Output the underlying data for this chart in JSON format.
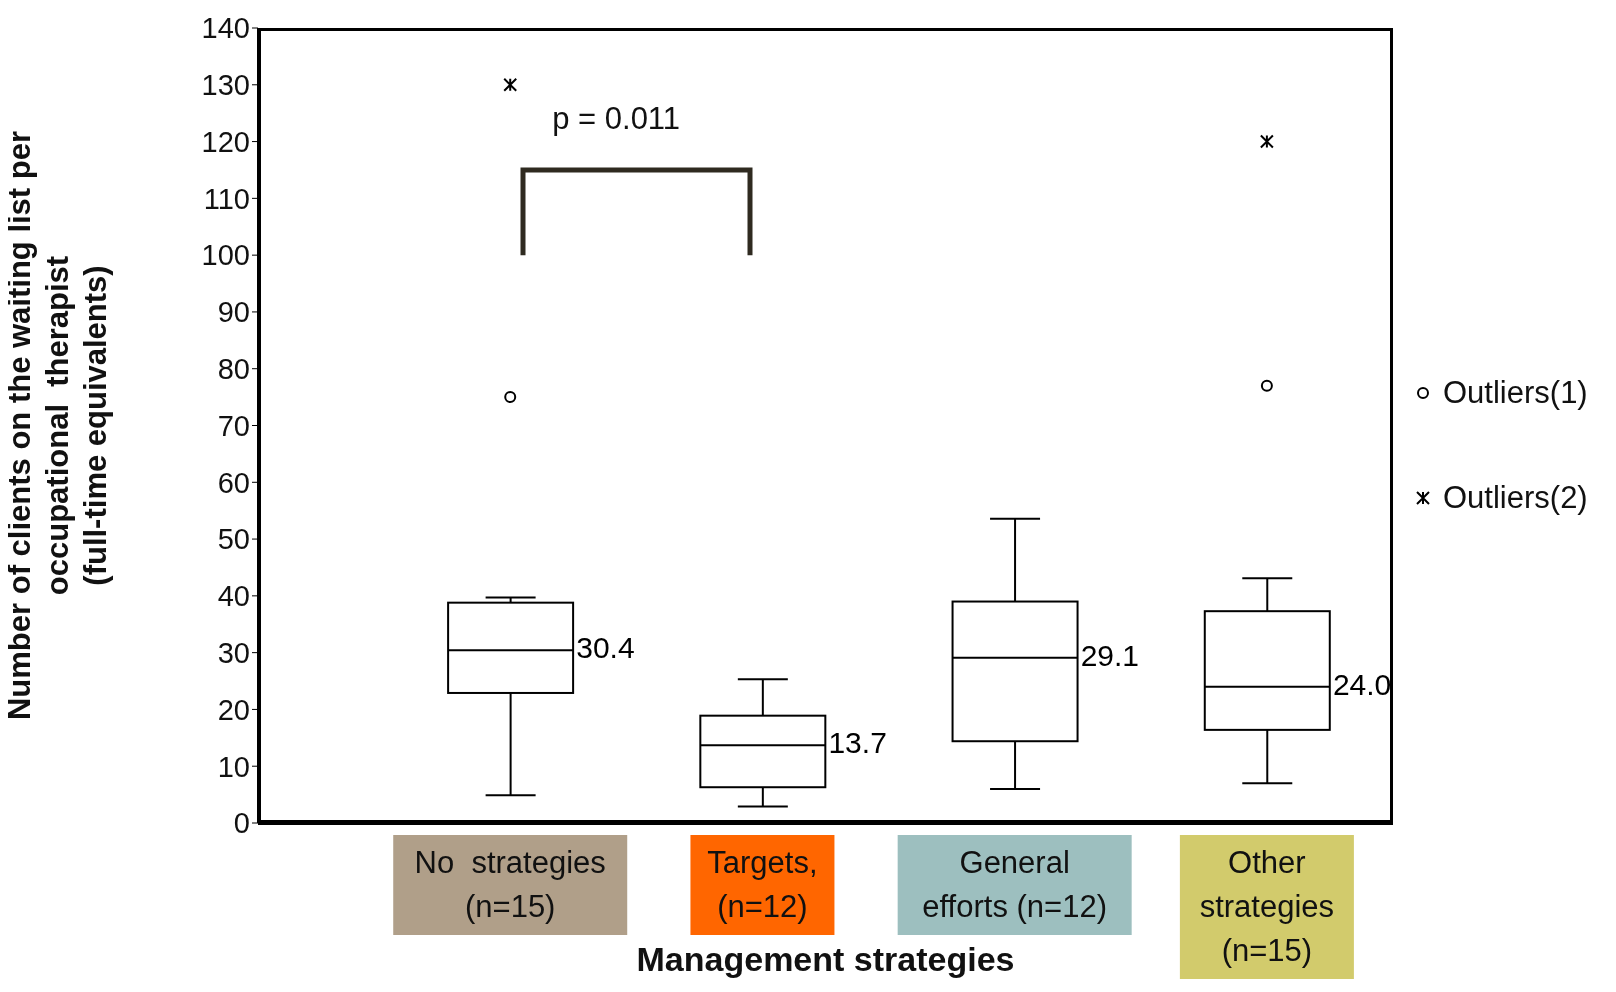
{
  "chart_data": {
    "type": "box",
    "xlabel": "Management strategies",
    "ylabel": "Number of clients on the waiting list per\noccupational  therapist\n(full-time equivalents)",
    "categories": [
      "No  strategies\n(n=15)",
      "Targets,\n(n=12)",
      "General\nefforts (n=12)",
      "Other\nstrategies\n(n=15)"
    ],
    "boxes": [
      {
        "low": 4.9,
        "q1": 22.9,
        "median": 30.4,
        "q3": 38.8,
        "high": 39.7
      },
      {
        "low": 2.9,
        "q1": 6.3,
        "median": 13.7,
        "q3": 18.9,
        "high": 25.3
      },
      {
        "low": 6.0,
        "q1": 14.4,
        "median": 29.1,
        "q3": 39.0,
        "high": 53.6
      },
      {
        "low": 7.0,
        "q1": 16.4,
        "median": 24.0,
        "q3": 37.3,
        "high": 43.1
      }
    ],
    "series": [
      {
        "name": "Outliers(1)",
        "type": "scatter",
        "marker": "circle",
        "color": "#000000",
        "values": [
          75,
          null,
          null,
          77
        ]
      },
      {
        "name": "Outliers(2)",
        "type": "scatter",
        "marker": "cross",
        "color": "#000000",
        "values": [
          130,
          null,
          null,
          120
        ]
      }
    ],
    "annotations": [
      {
        "text": "30.4",
        "x": "No  strategies\n(n=15)",
        "y": 30.4
      },
      {
        "text": "13.7",
        "x": "Targets,\n(n=12)",
        "y": 13.7
      },
      {
        "text": "29.1",
        "x": "General\nefforts (n=12)",
        "y": 29.1
      },
      {
        "text": "24.0",
        "x": "Other\nstrategies\n(n=15)",
        "y": 24.0
      },
      "p = 0.011"
    ],
    "ylim": [
      0,
      140
    ],
    "yticks": [
      0,
      10,
      20,
      30,
      40,
      50,
      60,
      70,
      80,
      90,
      100,
      110,
      120,
      130,
      140
    ],
    "grid": false,
    "legend": "right"
  }
}
